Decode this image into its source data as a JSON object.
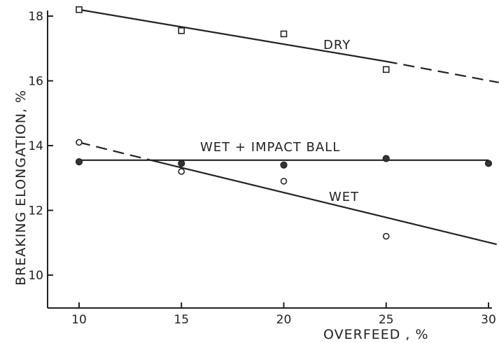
{
  "chart_data": {
    "type": "scatter",
    "title": "",
    "xlabel": "OVERFEED , %",
    "ylabel": "BREAKING ELONGATION, %",
    "xlim": [
      8.2,
      31
    ],
    "ylim": [
      9.0,
      18.2
    ],
    "xticks": [
      "10",
      "15",
      "20",
      "25",
      "30"
    ],
    "yticks": [
      "10",
      "12",
      "14",
      "16",
      "18"
    ],
    "grid": false,
    "legend": "none",
    "series": [
      {
        "name": "DRY",
        "marker": "square-open",
        "x": [
          10,
          15,
          20,
          25
        ],
        "y": [
          18.2,
          17.55,
          17.45,
          16.35
        ],
        "fit": {
          "solid": [
            [
              10,
              18.2
            ],
            [
              25,
              16.6
            ]
          ],
          "dashed": [
            [
              25,
              16.6
            ],
            [
              30.5,
              15.95
            ]
          ]
        }
      },
      {
        "name": "WET + IMPACT BALL",
        "marker": "circle-filled",
        "x": [
          10,
          15,
          20,
          25,
          30
        ],
        "y": [
          13.5,
          13.45,
          13.4,
          13.6,
          13.45
        ],
        "fit": {
          "solid": [
            [
              10,
              13.55
            ],
            [
              30,
              13.55
            ]
          ],
          "dashed": []
        }
      },
      {
        "name": "WET",
        "marker": "circle-open",
        "x": [
          10,
          15,
          20,
          25
        ],
        "y": [
          14.1,
          13.2,
          12.9,
          11.2
        ],
        "fit": {
          "solid": [
            [
              13.5,
              13.55
            ],
            [
              30.4,
              10.95
            ]
          ],
          "dashed": [
            [
              10,
              14.1
            ],
            [
              13.5,
              13.55
            ]
          ]
        }
      }
    ],
    "colors": {
      "ink": "#222222",
      "background": "#ffffff"
    }
  }
}
